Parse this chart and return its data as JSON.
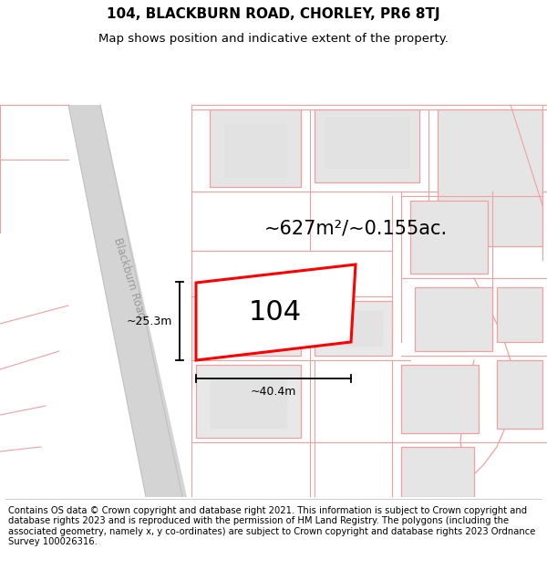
{
  "title_line1": "104, BLACKBURN ROAD, CHORLEY, PR6 8TJ",
  "title_line2": "Map shows position and indicative extent of the property.",
  "footer_text": "Contains OS data © Crown copyright and database right 2021. This information is subject to Crown copyright and database rights 2023 and is reproduced with the permission of HM Land Registry. The polygons (including the associated geometry, namely x, y co-ordinates) are subject to Crown copyright and database rights 2023 Ordnance Survey 100026316.",
  "area_text": "~627m²/~0.155ac.",
  "property_label": "104",
  "dim_width": "~40.4m",
  "dim_height": "~25.3m",
  "road_label": "Blackburn Road",
  "bg_color": "#ffffff",
  "map_bg": "#f7f7f7",
  "road_fill": "#d4d4d4",
  "road_edge": "#c8c8c8",
  "building_fill": "#e8e8e8",
  "building_stroke": "#f5a0a0",
  "plot_fill": "#f0f0f0",
  "plot_stroke": "#f0a0a0",
  "highlight_stroke": "#ff0000",
  "highlight_fill": "#ffffff",
  "dim_color": "#000000",
  "title_fontsize": 11,
  "subtitle_fontsize": 9.5,
  "footer_fontsize": 7.2,
  "area_fontsize": 15,
  "label_fontsize": 22,
  "road_label_fontsize": 8.5,
  "dim_fontsize": 9
}
